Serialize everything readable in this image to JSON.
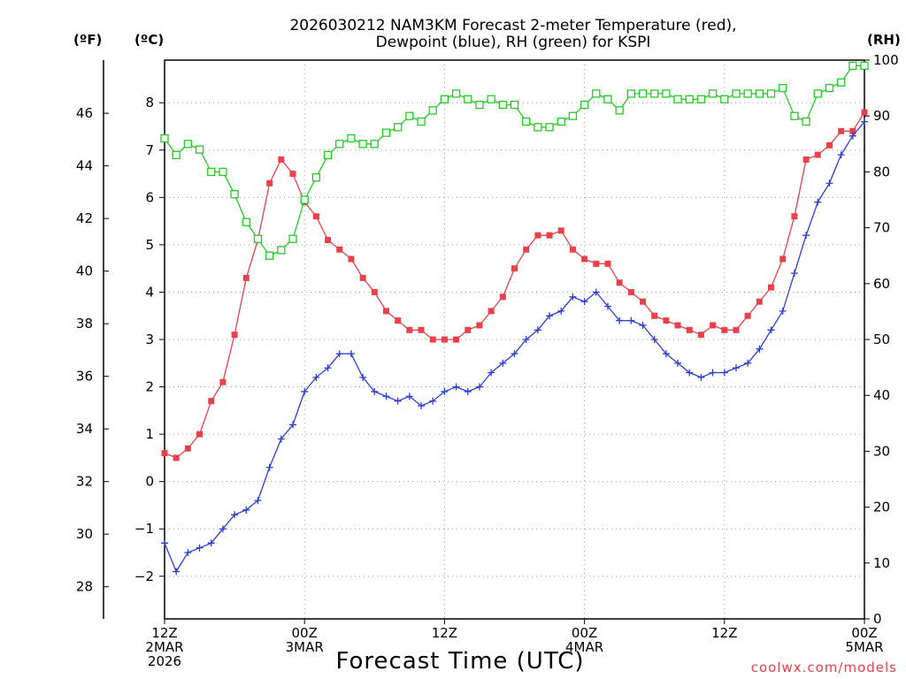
{
  "title_line1": "2026030212 NAM3KM Forecast 2-meter Temperature (red),",
  "title_line2": "Dewpoint (blue), RH (green) for KSPI",
  "unit_f": "(ºF)",
  "unit_c": "(ºC)",
  "unit_rh": "(RH)",
  "xlabel": "Forecast Time (UTC)",
  "credit": "coolwx.com/models",
  "colors": {
    "temperature": "#e8414a",
    "dewpoint": "#2b3fd6",
    "rh": "#22cc22",
    "grid": "#999999"
  },
  "chart_data": {
    "type": "line",
    "title": "2026030212 NAM3KM Forecast 2-meter Temperature (red), Dewpoint (blue), RH (green) for KSPI",
    "xlabel": "Forecast Time (UTC)",
    "x_hours": [
      0,
      1,
      2,
      3,
      4,
      5,
      6,
      7,
      8,
      9,
      10,
      11,
      12,
      13,
      14,
      15,
      16,
      17,
      18,
      19,
      20,
      21,
      22,
      23,
      24,
      25,
      26,
      27,
      28,
      29,
      30,
      31,
      32,
      33,
      34,
      35,
      36,
      37,
      38,
      39,
      40,
      41,
      42,
      43,
      44,
      45,
      46,
      47,
      48,
      49,
      50,
      51,
      52,
      53,
      54,
      55,
      56,
      57,
      58,
      59,
      60
    ],
    "xlim": [
      0,
      60
    ],
    "x_ticks": [
      {
        "hour": 0,
        "lines": [
          "12Z",
          "2MAR",
          "2026"
        ]
      },
      {
        "hour": 12,
        "lines": [
          "00Z",
          "3MAR"
        ]
      },
      {
        "hour": 24,
        "lines": [
          "12Z"
        ]
      },
      {
        "hour": 36,
        "lines": [
          "00Z",
          "4MAR"
        ]
      },
      {
        "hour": 48,
        "lines": [
          "12Z"
        ]
      },
      {
        "hour": 60,
        "lines": [
          "00Z",
          "5MAR"
        ]
      }
    ],
    "y_celsius": {
      "label": "(ºC)",
      "ylim": [
        -2.9,
        8.9
      ],
      "ticks": [
        -2,
        -1,
        0,
        1,
        2,
        3,
        4,
        5,
        6,
        7,
        8
      ]
    },
    "y_fahrenheit": {
      "label": "(ºF)",
      "ticks": [
        28,
        30,
        32,
        34,
        36,
        38,
        40,
        42,
        44,
        46
      ]
    },
    "y_rh": {
      "label": "(RH)",
      "ylim": [
        0,
        100
      ],
      "ticks": [
        0,
        10,
        20,
        30,
        40,
        50,
        60,
        70,
        80,
        90,
        100
      ]
    },
    "series": [
      {
        "name": "Temperature",
        "unit": "C",
        "axis": "celsius",
        "marker": "filled-square",
        "color": "#e8414a",
        "values": [
          0.6,
          0.5,
          0.7,
          1.0,
          1.7,
          2.1,
          3.1,
          4.3,
          5.1,
          6.3,
          6.8,
          6.5,
          5.9,
          5.6,
          5.1,
          4.9,
          4.7,
          4.3,
          4.0,
          3.6,
          3.4,
          3.2,
          3.2,
          3.0,
          3.0,
          3.0,
          3.2,
          3.3,
          3.6,
          3.9,
          4.5,
          4.9,
          5.2,
          5.2,
          5.3,
          4.9,
          4.7,
          4.6,
          4.6,
          4.2,
          4.0,
          3.8,
          3.5,
          3.4,
          3.3,
          3.2,
          3.1,
          3.3,
          3.2,
          3.2,
          3.5,
          3.8,
          4.1,
          4.7,
          5.6,
          6.8,
          6.9,
          7.1,
          7.4,
          7.4,
          7.8
        ]
      },
      {
        "name": "Dewpoint",
        "unit": "C",
        "axis": "celsius",
        "marker": "plus",
        "color": "#2b3fd6",
        "values": [
          -1.3,
          -1.9,
          -1.5,
          -1.4,
          -1.3,
          -1.0,
          -0.7,
          -0.6,
          -0.4,
          0.3,
          0.9,
          1.2,
          1.9,
          2.2,
          2.4,
          2.7,
          2.7,
          2.2,
          1.9,
          1.8,
          1.7,
          1.8,
          1.6,
          1.7,
          1.9,
          2.0,
          1.9,
          2.0,
          2.3,
          2.5,
          2.7,
          3.0,
          3.2,
          3.5,
          3.6,
          3.9,
          3.8,
          4.0,
          3.7,
          3.4,
          3.4,
          3.3,
          3.0,
          2.7,
          2.5,
          2.3,
          2.2,
          2.3,
          2.3,
          2.4,
          2.5,
          2.8,
          3.2,
          3.6,
          4.4,
          5.2,
          5.9,
          6.3,
          6.9,
          7.3,
          7.6
        ]
      },
      {
        "name": "RH",
        "unit": "%",
        "axis": "rh",
        "marker": "open-square",
        "color": "#22cc22",
        "values": [
          86,
          83,
          85,
          84,
          80,
          80,
          76,
          71,
          68,
          65,
          66,
          68,
          75,
          79,
          83,
          85,
          86,
          85,
          85,
          87,
          88,
          90,
          89,
          91,
          93,
          94,
          93,
          92,
          93,
          92,
          92,
          89,
          88,
          88,
          89,
          90,
          92,
          94,
          93,
          91,
          94,
          94,
          94,
          94,
          93,
          93,
          93,
          94,
          93,
          94,
          94,
          94,
          94,
          95,
          90,
          89,
          94,
          95,
          96,
          99,
          99
        ]
      }
    ]
  }
}
